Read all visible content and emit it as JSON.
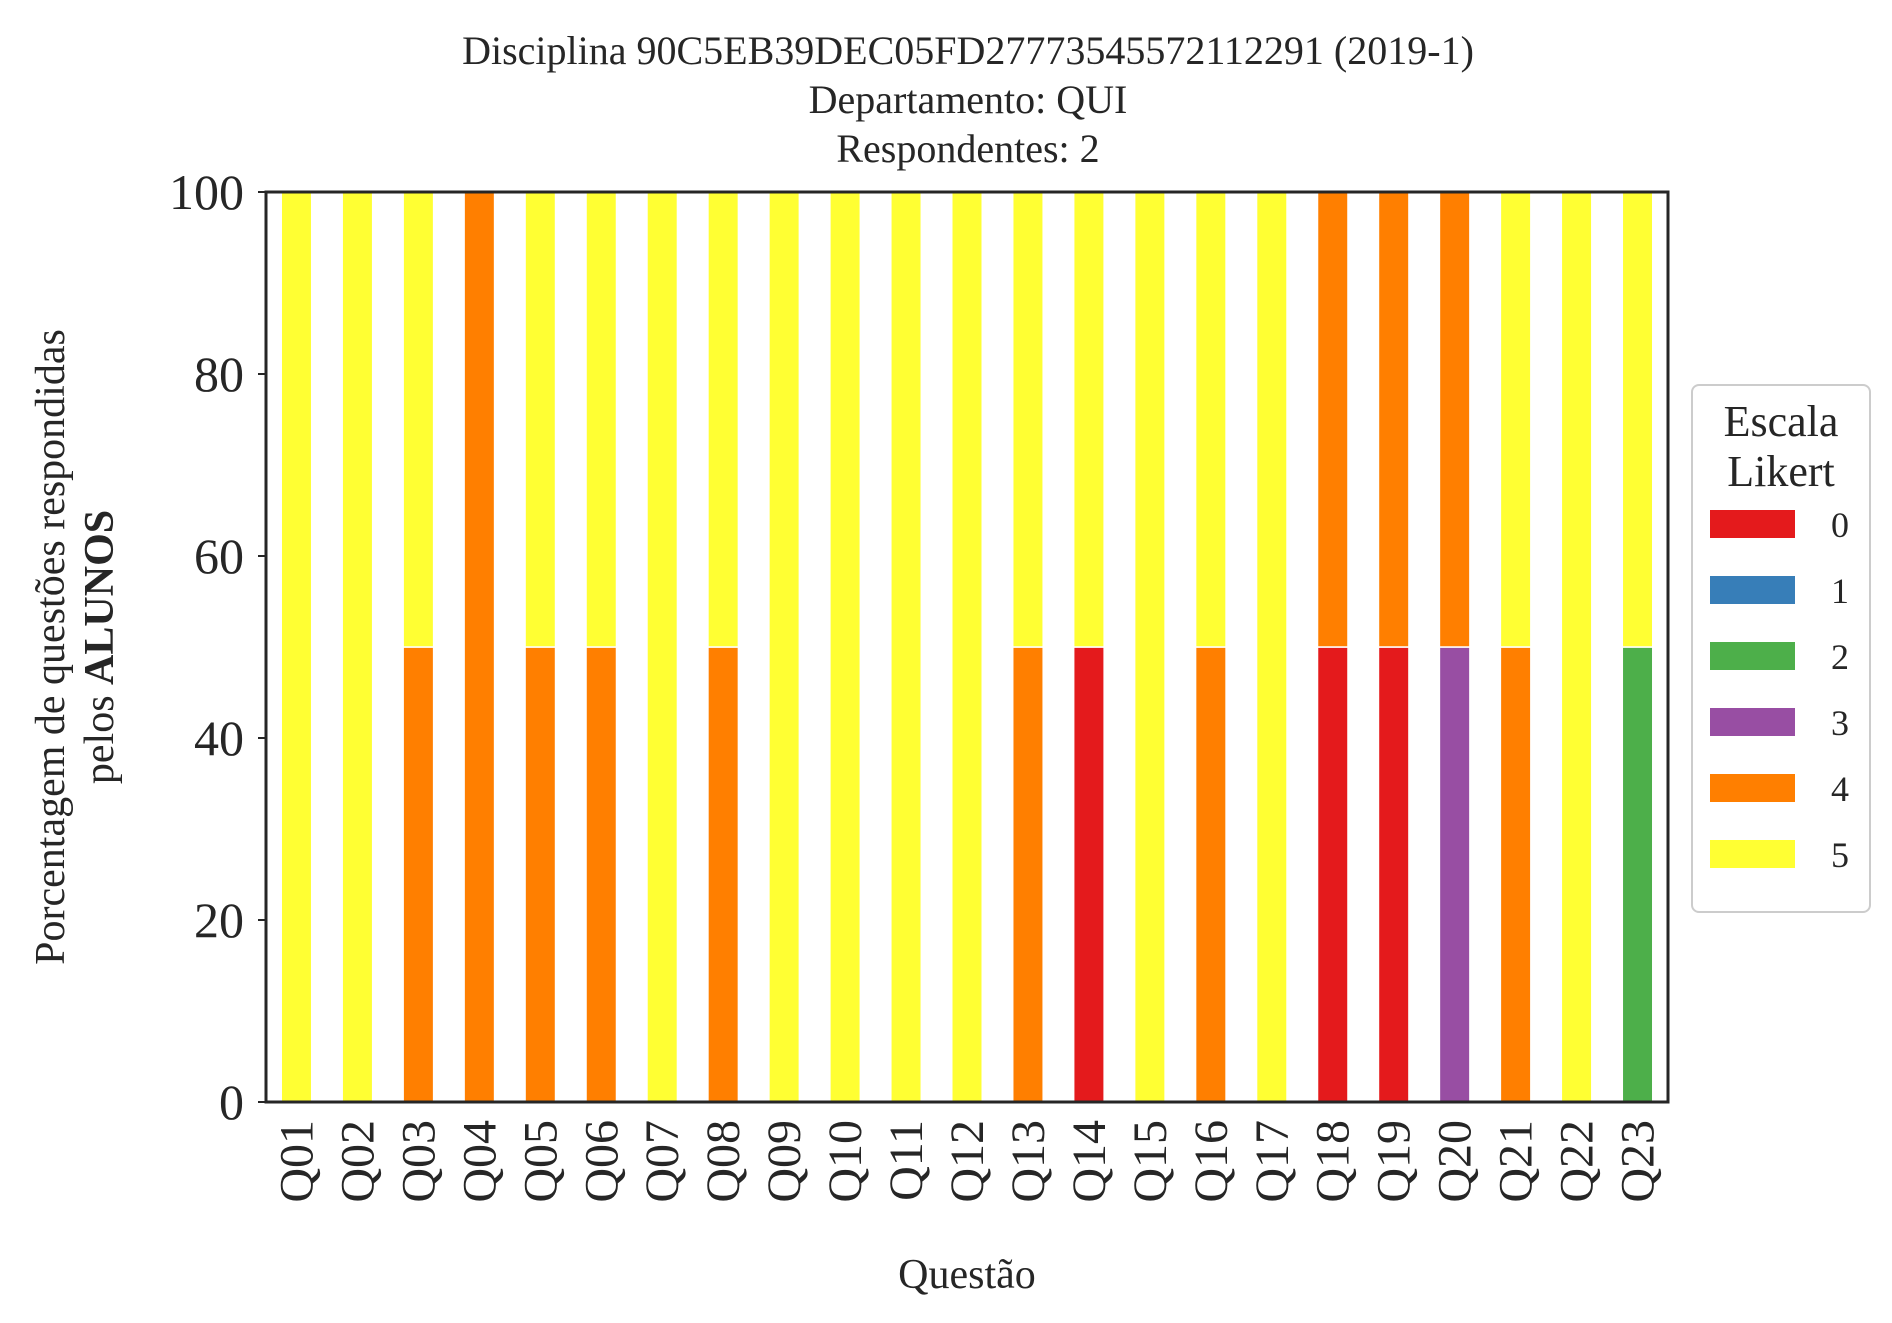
{
  "chart_data": {
    "type": "bar",
    "stacked": true,
    "title": [
      "Disciplina 90C5EB39DEC05FD27773545572112291 (2019-1)",
      "Departamento: QUI",
      "Respondentes: 2"
    ],
    "xlabel": "Questão",
    "ylabel_line1": "Porcentagem de questões respondidas",
    "ylabel_line2_prefix": "pelos ",
    "ylabel_line2_bold": "ALUNOS",
    "ylim": [
      0,
      100
    ],
    "yticks": [
      "0",
      "20",
      "40",
      "60",
      "80",
      "100"
    ],
    "grid": false,
    "legend_position": "right",
    "legend_title": [
      "Escala",
      "Likert"
    ],
    "categories": [
      "Q01",
      "Q02",
      "Q03",
      "Q04",
      "Q05",
      "Q06",
      "Q07",
      "Q08",
      "Q09",
      "Q10",
      "Q11",
      "Q12",
      "Q13",
      "Q14",
      "Q15",
      "Q16",
      "Q17",
      "Q18",
      "Q19",
      "Q20",
      "Q21",
      "Q22",
      "Q23"
    ],
    "series": [
      {
        "name": "0",
        "color": "#e41a1c",
        "values": [
          0,
          0,
          0,
          0,
          0,
          0,
          0,
          0,
          0,
          0,
          0,
          0,
          0,
          50,
          0,
          0,
          0,
          50,
          50,
          0,
          0,
          0,
          0
        ]
      },
      {
        "name": "1",
        "color": "#377eb8",
        "values": [
          0,
          0,
          0,
          0,
          0,
          0,
          0,
          0,
          0,
          0,
          0,
          0,
          0,
          0,
          0,
          0,
          0,
          0,
          0,
          0,
          0,
          0,
          0
        ]
      },
      {
        "name": "2",
        "color": "#4daf4a",
        "values": [
          0,
          0,
          0,
          0,
          0,
          0,
          0,
          0,
          0,
          0,
          0,
          0,
          0,
          0,
          0,
          0,
          0,
          0,
          0,
          0,
          0,
          0,
          50
        ]
      },
      {
        "name": "3",
        "color": "#984ea3",
        "values": [
          0,
          0,
          0,
          0,
          0,
          0,
          0,
          0,
          0,
          0,
          0,
          0,
          0,
          0,
          0,
          0,
          0,
          0,
          0,
          50,
          0,
          0,
          0
        ]
      },
      {
        "name": "4",
        "color": "#ff7f00",
        "values": [
          0,
          0,
          50,
          100,
          50,
          50,
          0,
          50,
          0,
          0,
          0,
          0,
          50,
          0,
          0,
          50,
          0,
          50,
          50,
          50,
          50,
          0,
          0
        ]
      },
      {
        "name": "5",
        "color": "#ffff33",
        "values": [
          100,
          100,
          50,
          0,
          50,
          50,
          100,
          50,
          100,
          100,
          100,
          100,
          50,
          50,
          100,
          50,
          100,
          0,
          0,
          0,
          50,
          100,
          50
        ]
      }
    ]
  }
}
